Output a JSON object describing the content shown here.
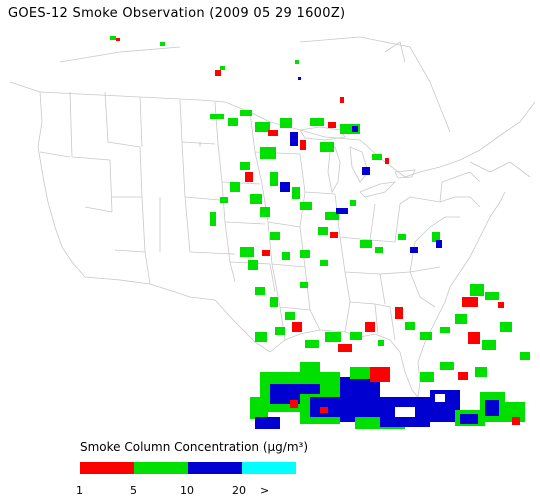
{
  "title": "GOES-12 Smoke Observation (2009 05 29  1600Z)",
  "legend": {
    "title": "Smoke Column Concentration (μg/m³)",
    "bins": [
      {
        "color": "#ff0000",
        "label": "1"
      },
      {
        "color": "#00e000",
        "label": "5"
      },
      {
        "color": "#0000d0",
        "label": "10"
      },
      {
        "color": "#00ffff",
        "label": "20"
      }
    ],
    "overflow_label": ">"
  },
  "map": {
    "land_color": "#ffffff",
    "border_color": "#c8c8c8",
    "smoke_colors": {
      "low": "#ff0000",
      "mid": "#00e000",
      "high": "#0000d0",
      "very_high": "#00ffff"
    }
  }
}
